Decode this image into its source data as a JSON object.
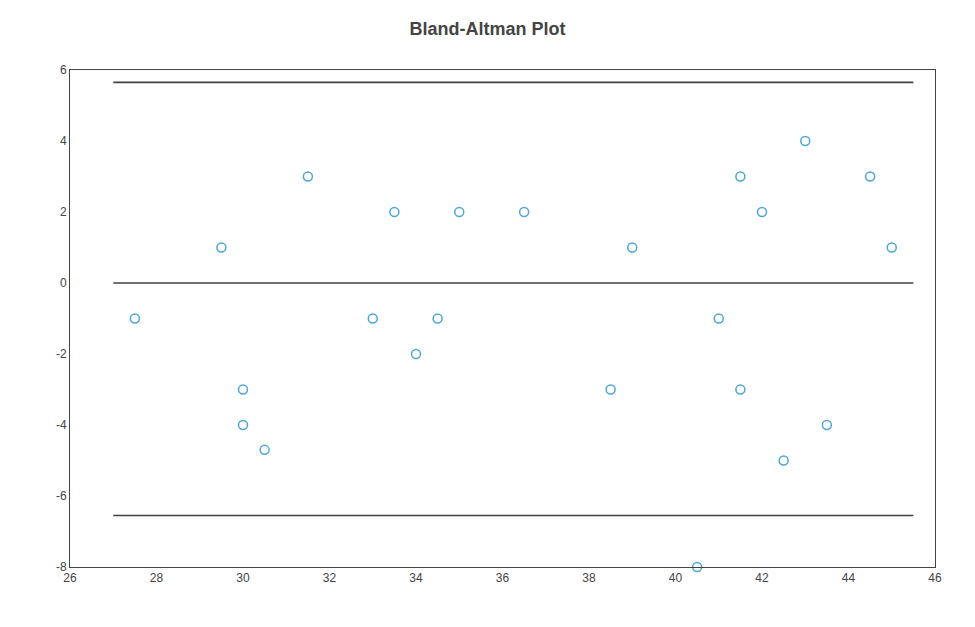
{
  "chart_data": {
    "type": "scatter",
    "title": "Bland-Altman Plot",
    "xlim": [
      26,
      46
    ],
    "ylim": [
      -8,
      6
    ],
    "xticks": [
      26,
      28,
      30,
      32,
      34,
      36,
      38,
      40,
      42,
      44,
      46
    ],
    "yticks": [
      -8,
      -6,
      -4,
      -2,
      0,
      2,
      4,
      6
    ],
    "grid": false,
    "series": [
      {
        "type": "scatter",
        "x": [
          27.5,
          29.5,
          30.0,
          30.0,
          30.5,
          31.5,
          33.0,
          33.5,
          34.0,
          34.5,
          35.0,
          36.5,
          38.5,
          39.0,
          40.5,
          41.0,
          41.5,
          41.5,
          42.0,
          42.5,
          43.0,
          43.5,
          44.5,
          45.0
        ],
        "values": [
          -1,
          1,
          -4,
          -3,
          -4.7,
          3,
          -1,
          2,
          -2,
          -1,
          2,
          2,
          -3,
          1,
          -8,
          -1,
          3,
          -3,
          2,
          -5,
          4,
          -4,
          3,
          1
        ],
        "color": "#4da6d8",
        "marker": "open_circle"
      },
      {
        "type": "line",
        "x": [
          27.0,
          45.5
        ],
        "values": [
          5.65,
          5.65
        ],
        "color": "#404040",
        "line_style": "solid"
      },
      {
        "type": "line",
        "x": [
          27.0,
          45.5
        ],
        "values": [
          0.0,
          0.0
        ],
        "color": "#404040",
        "line_style": "solid"
      },
      {
        "type": "line",
        "x": [
          27.0,
          45.5
        ],
        "values": [
          -6.55,
          -6.55
        ],
        "color": "#404040",
        "line_style": "solid"
      }
    ]
  }
}
